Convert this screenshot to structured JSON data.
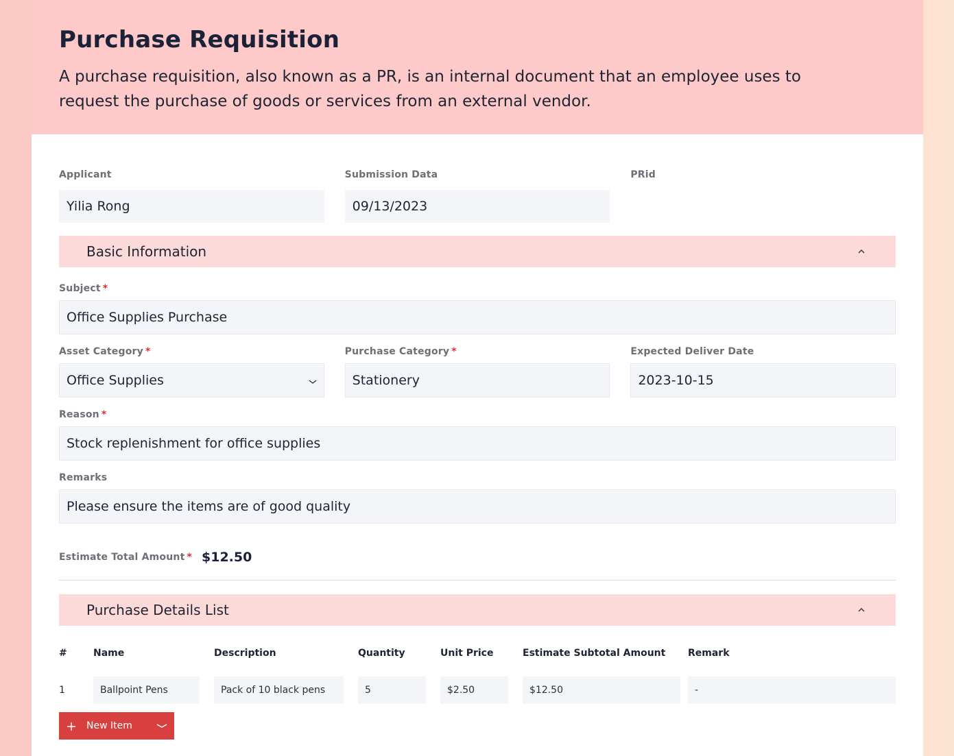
{
  "header": {
    "title": "Purchase Requisition",
    "description": "A purchase requisition, also known as a PR, is an internal document that an employee uses to request the purchase of goods or services from an external vendor."
  },
  "top_fields": {
    "applicant_label": "Applicant",
    "applicant_value": "Yilia Rong",
    "submission_label": "Submission Data",
    "submission_value": "09/13/2023",
    "prid_label": "PRid"
  },
  "basic_info": {
    "title": "Basic Information",
    "subject_label": "Subject",
    "subject_value": "Office Supplies Purchase",
    "asset_category_label": "Asset Category",
    "asset_category_value": "Office Supplies",
    "purchase_category_label": "Purchase Category",
    "purchase_category_value": "Stationery",
    "expected_date_label": "Expected Deliver Date",
    "expected_date_value": "2023-10-15",
    "reason_label": "Reason",
    "reason_value": "Stock replenishment for office supplies",
    "remarks_label": "Remarks",
    "remarks_value": "Please ensure the items are of good quality",
    "total_label": "Estimate Total Amount",
    "total_value": "$12.50",
    "required_mark": "*"
  },
  "details": {
    "title": "Purchase Details List",
    "columns": [
      "#",
      "Name",
      "Description",
      "Quantity",
      "Unit Price",
      "Estimate Subtotal Amount",
      "Remark"
    ],
    "rows": [
      [
        "1",
        "Ballpoint Pens",
        "Pack of 10 black pens",
        "5",
        "$2.50",
        "$12.50",
        "-"
      ]
    ],
    "new_item_label": "New Item"
  },
  "icons": {
    "collapse": "chevron-up-icon",
    "dropdown": "chevron-down-icon",
    "add": "plus-icon"
  },
  "colors": {
    "header_bg": "#fdcac9",
    "section_bg": "#fcdada",
    "accent": "#d8403f",
    "required": "#d6303a"
  }
}
